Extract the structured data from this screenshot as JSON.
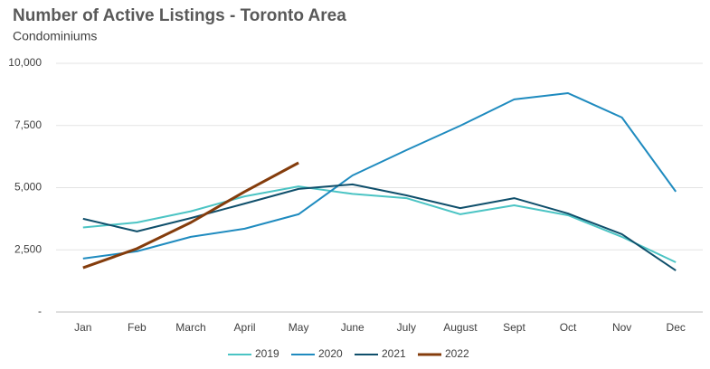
{
  "chart_data": {
    "type": "line",
    "title": "Number of Active Listings - Toronto Area",
    "subtitle": "Condominiums",
    "categories": [
      "Jan",
      "Feb",
      "March",
      "April",
      "May",
      "June",
      "July",
      "August",
      "Sept",
      "Oct",
      "Nov",
      "Dec"
    ],
    "series": [
      {
        "name": "2019",
        "color": "#4bc4c4",
        "values": [
          3400,
          3600,
          4050,
          4650,
          5050,
          4750,
          4580,
          3930,
          4290,
          3890,
          3020,
          2000
        ]
      },
      {
        "name": "2020",
        "color": "#1f8bbf",
        "values": [
          2150,
          2440,
          3020,
          3350,
          3930,
          5490,
          6510,
          7490,
          8550,
          8800,
          7820,
          4840
        ]
      },
      {
        "name": "2021",
        "color": "#0f4f6b",
        "values": [
          3750,
          3240,
          3780,
          4360,
          4950,
          5130,
          4690,
          4180,
          4580,
          3960,
          3130,
          1670
        ]
      },
      {
        "name": "2022",
        "color": "#843c0c",
        "values": [
          1780,
          2550,
          3600,
          4840,
          6000,
          null,
          null,
          null,
          null,
          null,
          null,
          null
        ]
      }
    ],
    "ylim": [
      0,
      10000
    ],
    "yticks": [
      {
        "value": 0,
        "label": "-"
      },
      {
        "value": 2500,
        "label": "2,500"
      },
      {
        "value": 5000,
        "label": "5,000"
      },
      {
        "value": 7500,
        "label": "7,500"
      },
      {
        "value": 10000,
        "label": "10,000"
      }
    ],
    "grid": true,
    "legend": "bottom"
  }
}
